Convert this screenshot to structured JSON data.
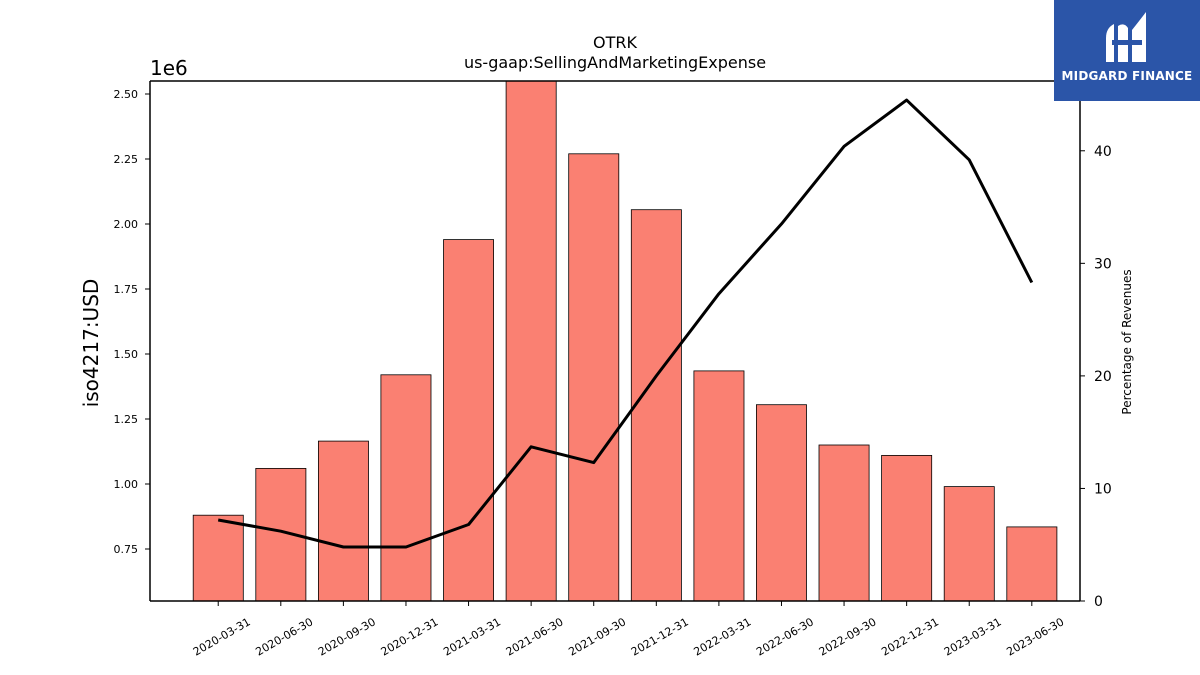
{
  "brand": {
    "name": "MIDGARD FINANCE",
    "color": "#2b55a8",
    "icon": "midgard-logo-icon"
  },
  "chart_data": {
    "type": "bar",
    "title": "OTRK",
    "subtitle": "us-gaap:SellingAndMarketingExpense",
    "ylabel": "iso4217:USD",
    "y_offset_label": "1e6",
    "y2label": "Percentage of Revenues",
    "categories": [
      "2020-03-31",
      "2020-06-30",
      "2020-09-30",
      "2020-12-31",
      "2021-03-31",
      "2021-06-30",
      "2021-09-30",
      "2021-12-31",
      "2022-03-31",
      "2022-06-30",
      "2022-09-30",
      "2022-12-31",
      "2023-03-31",
      "2023-06-30"
    ],
    "series": [
      {
        "type": "bar",
        "axis": "left",
        "color": "#fa8072",
        "values": [
          880000,
          1060000,
          1165000,
          1420000,
          1940000,
          2560000,
          2270000,
          2055000,
          1435000,
          1305000,
          1150000,
          1110000,
          990000,
          835000
        ]
      },
      {
        "type": "line",
        "axis": "right",
        "color": "#000000",
        "values": [
          7.2,
          6.2,
          4.8,
          4.8,
          6.8,
          13.7,
          12.3,
          20.0,
          27.3,
          33.5,
          40.4,
          44.5,
          39.2,
          28.3
        ]
      }
    ],
    "ylim": [
      550000,
      2550000
    ],
    "y_ticks": [
      750000,
      1000000,
      1250000,
      1500000,
      1750000,
      2000000,
      2250000,
      2500000
    ],
    "y_tick_labels": [
      "0.75",
      "1.00",
      "1.25",
      "1.50",
      "1.75",
      "2.00",
      "2.25",
      "2.50"
    ],
    "y2lim": [
      0,
      46.2
    ],
    "y2_ticks": [
      0,
      10,
      20,
      30,
      40
    ],
    "y2_tick_labels": [
      "0",
      "10",
      "20",
      "30",
      "40"
    ],
    "grid": false,
    "legend": "none"
  }
}
